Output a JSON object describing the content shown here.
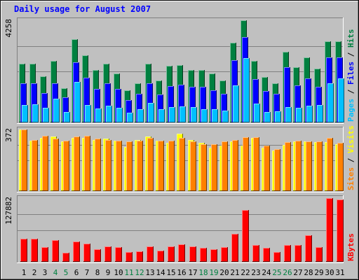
{
  "chart_data": {
    "title": "Daily usage for August 2007",
    "type": "bar",
    "days": [
      "1",
      "2",
      "3",
      "4",
      "5",
      "6",
      "7",
      "8",
      "9",
      "10",
      "11",
      "12",
      "13",
      "14",
      "15",
      "16",
      "17",
      "18",
      "19",
      "20",
      "21",
      "22",
      "23",
      "24",
      "25",
      "26",
      "27",
      "28",
      "29",
      "30",
      "31"
    ],
    "weekend_days": [
      "4",
      "5",
      "11",
      "12",
      "18",
      "19",
      "25",
      "26"
    ],
    "panels": [
      {
        "key": "hits",
        "max_label": "4258",
        "ymax": 4258,
        "right_label_parts": [
          {
            "text": "Pages",
            "color": "#00c0ff"
          },
          {
            "text": " / ",
            "color": "#000000"
          },
          {
            "text": "Files",
            "color": "#0000ff"
          },
          {
            "text": " / ",
            "color": "#000000"
          },
          {
            "text": "Hits",
            "color": "#008040"
          }
        ],
        "series": [
          {
            "name": "Hits",
            "color": "#008040",
            "values": [
              2450,
              2450,
              1920,
              2560,
              1420,
              3460,
              2800,
              2200,
              2450,
              2030,
              1340,
              1620,
              2450,
              1740,
              2360,
              2400,
              2200,
              2180,
              2030,
              1740,
              3320,
              4258,
              2560,
              1900,
              1620,
              2960,
              2300,
              2700,
              2250,
              3380,
              3380
            ]
          },
          {
            "name": "Files",
            "color": "#0000ff",
            "values": [
              1620,
              1620,
              1230,
              1620,
              1060,
              2500,
              1880,
              1400,
              1620,
              1400,
              930,
              1190,
              1620,
              1160,
              1520,
              1580,
              1480,
              1480,
              1330,
              1200,
              2600,
              3570,
              1800,
              1300,
              1190,
              2300,
              1550,
              1830,
              1500,
              2700,
              2700
            ]
          },
          {
            "name": "Pages",
            "color": "#00c0ff",
            "values": [
              730,
              750,
              600,
              990,
              450,
              1700,
              740,
              580,
              690,
              620,
              400,
              560,
              820,
              550,
              650,
              680,
              650,
              560,
              550,
              500,
              1550,
              2680,
              780,
              450,
              480,
              650,
              610,
              700,
              740,
              1620,
              1830
            ]
          }
        ]
      },
      {
        "key": "visits",
        "max_label": "372",
        "ymax": 372,
        "right_label_parts": [
          {
            "text": "Sites",
            "color": "#ff8000"
          },
          {
            "text": " / ",
            "color": "#000000"
          },
          {
            "text": "Visits",
            "color": "#ffff00"
          }
        ],
        "series": [
          {
            "name": "Visits",
            "color": "#ffff00",
            "values": [
              372,
              305,
              320,
              330,
              300,
              320,
              320,
              310,
              315,
              305,
              265,
              310,
              330,
              305,
              290,
              345,
              310,
              290,
              260,
              275,
              300,
              275,
              320,
              260,
              245,
              280,
              300,
              300,
              295,
              295,
              285
            ]
          },
          {
            "name": "Sites",
            "color": "#ff8000",
            "values": [
              372,
              310,
              335,
              315,
              305,
              330,
              335,
              315,
              310,
              305,
              300,
              305,
              320,
              305,
              305,
              320,
              300,
              285,
              285,
              300,
              310,
              325,
              325,
              275,
              255,
              295,
              305,
              300,
              300,
              320,
              290
            ]
          }
        ]
      },
      {
        "key": "kbytes",
        "max_label": "127882",
        "ymax": 127882,
        "right_label_parts": [
          {
            "text": "KBytes",
            "color": "#ff0000"
          }
        ],
        "series": [
          {
            "name": "KBytes",
            "color": "#ff0000",
            "values": [
              47000,
              47000,
              29000,
              43000,
              18000,
              41000,
              36000,
              25000,
              31000,
              30000,
              19000,
              21000,
              31000,
              23000,
              31000,
              35000,
              31000,
              28000,
              25000,
              30000,
              56000,
              104000,
              34000,
              28000,
              20000,
              34000,
              34000,
              53000,
              30000,
              127882,
              125000
            ]
          }
        ]
      }
    ]
  }
}
